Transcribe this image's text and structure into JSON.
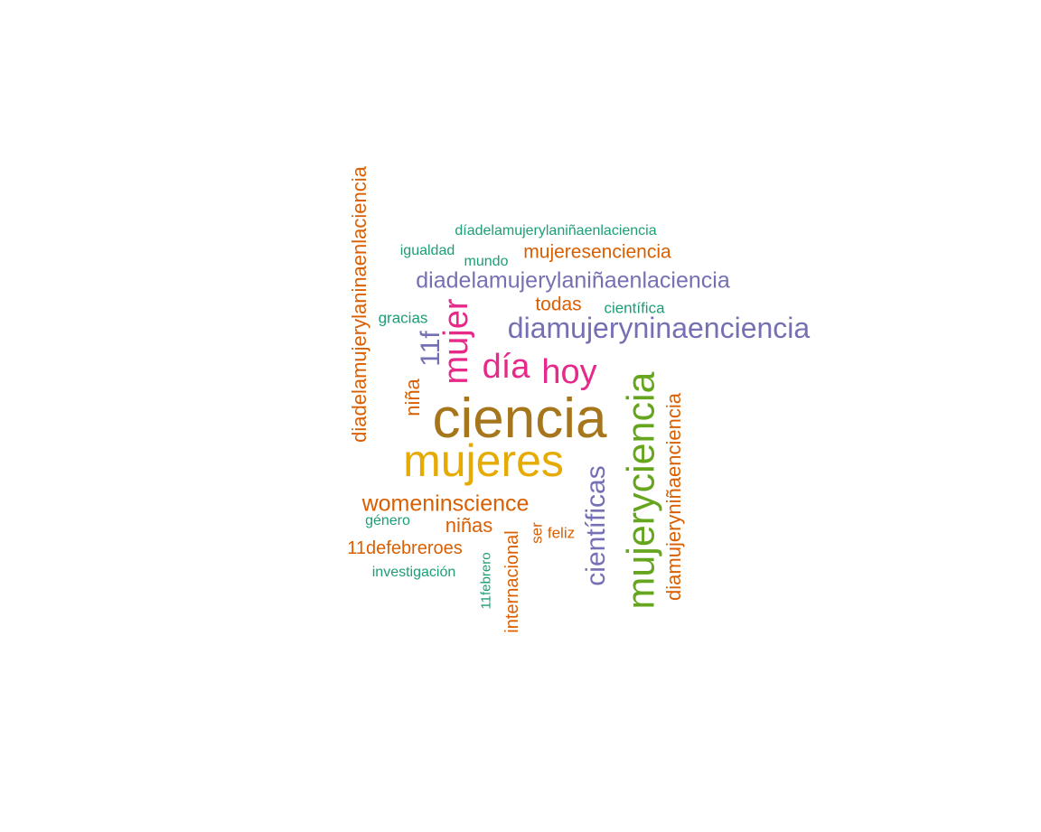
{
  "palette": {
    "teal": "#1b9e77",
    "orange": "#d95f02",
    "purple": "#7570b3",
    "magenta": "#e7298a",
    "green": "#66a61e",
    "mustard": "#e6ab02",
    "brown": "#a6761d"
  },
  "words": [
    {
      "text": "ciencia",
      "color": "#a6761d"
    },
    {
      "text": "mujeres",
      "color": "#e6ab02"
    },
    {
      "text": "mujeryciencia",
      "color": "#66a61e"
    },
    {
      "text": "diamujeryninaenciencia",
      "color": "#7570b3"
    },
    {
      "text": "hoy",
      "color": "#e7298a"
    },
    {
      "text": "día",
      "color": "#e7298a"
    },
    {
      "text": "mujer",
      "color": "#e7298a"
    },
    {
      "text": "científicas",
      "color": "#7570b3"
    },
    {
      "text": "diadelamujerylaniñaenlaciencia",
      "color": "#7570b3"
    },
    {
      "text": "diamujeryniñaenciencia",
      "color": "#d95f02"
    },
    {
      "text": "diadelamujerylaninaenlaciencia",
      "color": "#d95f02"
    },
    {
      "text": "11f",
      "color": "#7570b3"
    },
    {
      "text": "womeninscience",
      "color": "#d95f02"
    },
    {
      "text": "mujeresenciencia",
      "color": "#d95f02"
    },
    {
      "text": "niña",
      "color": "#d95f02"
    },
    {
      "text": "niñas",
      "color": "#d95f02"
    },
    {
      "text": "internacional",
      "color": "#d95f02"
    },
    {
      "text": "11defebreroes",
      "color": "#d95f02"
    },
    {
      "text": "todas",
      "color": "#d95f02"
    },
    {
      "text": "feliz",
      "color": "#d95f02"
    },
    {
      "text": "ser",
      "color": "#d95f02"
    },
    {
      "text": "díadelamujerylaniñaenlaciencia",
      "color": "#1b9e77"
    },
    {
      "text": "igualdad",
      "color": "#1b9e77"
    },
    {
      "text": "mundo",
      "color": "#1b9e77"
    },
    {
      "text": "gracias",
      "color": "#1b9e77"
    },
    {
      "text": "científica",
      "color": "#1b9e77"
    },
    {
      "text": "género",
      "color": "#1b9e77"
    },
    {
      "text": "investigación",
      "color": "#1b9e77"
    },
    {
      "text": "11febrero",
      "color": "#1b9e77"
    }
  ]
}
